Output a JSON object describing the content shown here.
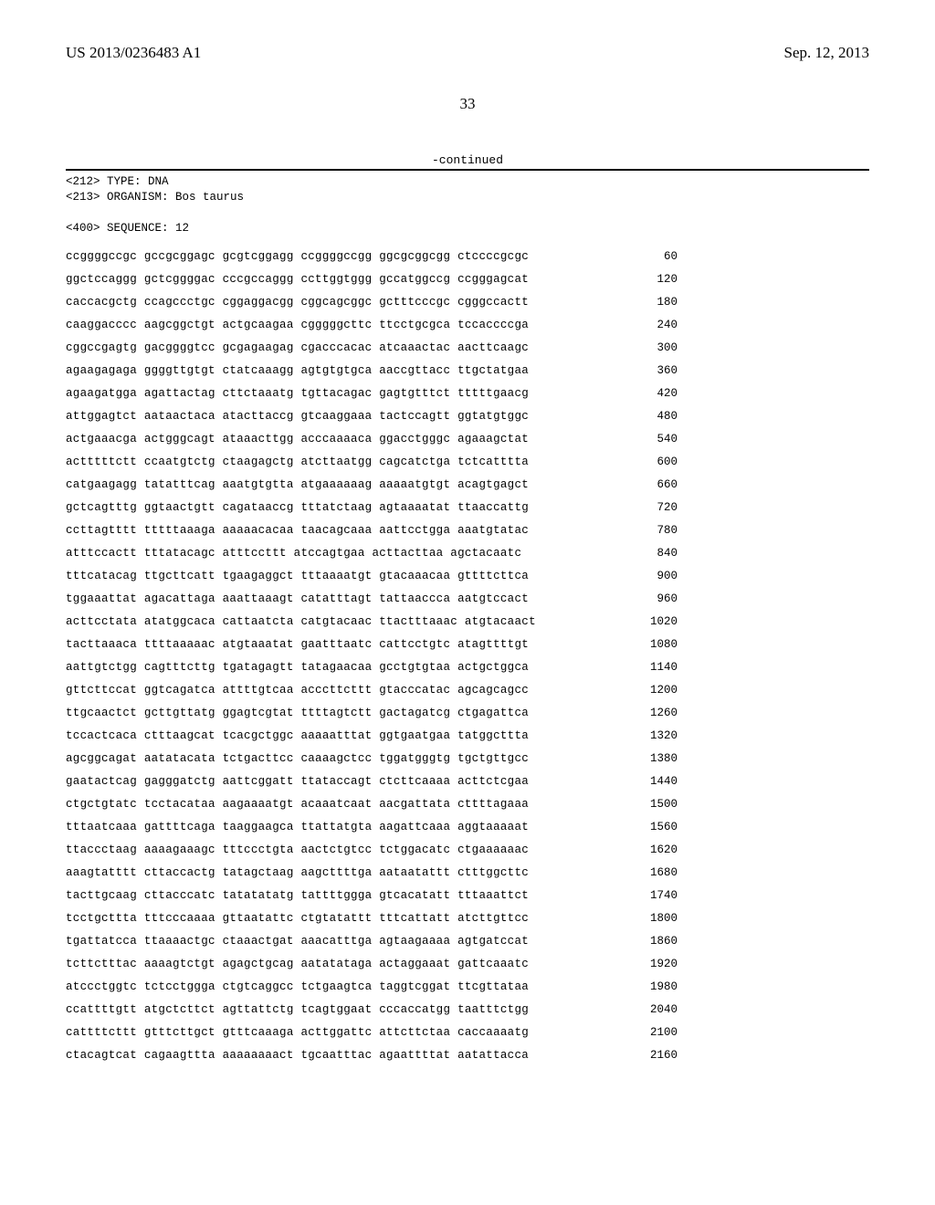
{
  "header": {
    "publication_number": "US 2013/0236483 A1",
    "publication_date": "Sep. 12, 2013"
  },
  "page_number": "33",
  "continued_label": "-continued",
  "meta_lines": [
    "<212> TYPE: DNA",
    "<213> ORGANISM: Bos taurus",
    "",
    "<400> SEQUENCE: 12"
  ],
  "sequence": [
    {
      "s": "ccggggccgc gccgcggagc gcgtcggagg ccggggccgg ggcgcggcgg ctccccgcgc",
      "p": "60"
    },
    {
      "s": "ggctccaggg gctcggggac cccgccaggg ccttggtggg gccatggccg ccgggagcat",
      "p": "120"
    },
    {
      "s": "caccacgctg ccagccctgc cggaggacgg cggcagcggc gctttcccgc cgggccactt",
      "p": "180"
    },
    {
      "s": "caaggacccc aagcggctgt actgcaagaa cgggggcttc ttcctgcgca tccaccccga",
      "p": "240"
    },
    {
      "s": "cggccgagtg gacggggtcc gcgagaagag cgacccacac atcaaactac aacttcaagc",
      "p": "300"
    },
    {
      "s": "agaagagaga ggggttgtgt ctatcaaagg agtgtgtgca aaccgttacc ttgctatgaa",
      "p": "360"
    },
    {
      "s": "agaagatgga agattactag cttctaaatg tgttacagac gagtgtttct tttttgaacg",
      "p": "420"
    },
    {
      "s": "attggagtct aataactaca atacttaccg gtcaaggaaa tactccagtt ggtatgtggc",
      "p": "480"
    },
    {
      "s": "actgaaacga actgggcagt ataaacttgg acccaaaaca ggacctgggc agaaagctat",
      "p": "540"
    },
    {
      "s": "actttttctt ccaatgtctg ctaagagctg atcttaatgg cagcatctga tctcatttta",
      "p": "600"
    },
    {
      "s": "catgaagagg tatatttcag aaatgtgtta atgaaaaaag aaaaatgtgt acagtgagct",
      "p": "660"
    },
    {
      "s": "gctcagtttg ggtaactgtt cagataaccg tttatctaag agtaaaatat ttaaccattg",
      "p": "720"
    },
    {
      "s": "ccttagtttt tttttaaaga aaaaacacaa taacagcaaa aattcctgga aaatgtatac",
      "p": "780"
    },
    {
      "s": "atttccactt tttatacagc atttccttt atccagtgaa acttacttaa agctacaatc",
      "p": "840"
    },
    {
      "s": "tttcatacag ttgcttcatt tgaagaggct tttaaaatgt gtacaaacaa gttttcttca",
      "p": "900"
    },
    {
      "s": "tggaaattat agacattaga aaattaaagt catatttagt tattaaccca aatgtccact",
      "p": "960"
    },
    {
      "s": "acttcctata atatggcaca cattaatcta catgtacaac ttactttaaac atgtacaact",
      "p": "1020"
    },
    {
      "s": "tacttaaaca ttttaaaaac atgtaaatat gaatttaatc cattcctgtc atagttttgt",
      "p": "1080"
    },
    {
      "s": "aattgtctgg cagtttcttg tgatagagtt tatagaacaa gcctgtgtaa actgctggca",
      "p": "1140"
    },
    {
      "s": "gttcttccat ggtcagatca attttgtcaa acccttcttt gtacccatac agcagcagcc",
      "p": "1200"
    },
    {
      "s": "ttgcaactct gcttgttatg ggagtcgtat ttttagtctt gactagatcg ctgagattca",
      "p": "1260"
    },
    {
      "s": "tccactcaca ctttaagcat tcacgctggc aaaaatttat ggtgaatgaa tatggcttta",
      "p": "1320"
    },
    {
      "s": "agcggcagat aatatacata tctgacttcc caaaagctcc tggatgggtg tgctgttgcc",
      "p": "1380"
    },
    {
      "s": "gaatactcag gagggatctg aattcggatt ttataccagt ctcttcaaaa acttctcgaa",
      "p": "1440"
    },
    {
      "s": "ctgctgtatc tcctacataa aagaaaatgt acaaatcaat aacgattata cttttagaaa",
      "p": "1500"
    },
    {
      "s": "tttaatcaaa gattttcaga taaggaagca ttattatgta aagattcaaa aggtaaaaat",
      "p": "1560"
    },
    {
      "s": "ttaccctaag aaaagaaagc tttccctgta aactctgtcc tctggacatc ctgaaaaaac",
      "p": "1620"
    },
    {
      "s": "aaagtatttt cttaccactg tatagctaag aagcttttga aataatattt ctttggcttc",
      "p": "1680"
    },
    {
      "s": "tacttgcaag cttacccatc tatatatatg tattttggga gtcacatatt tttaaattct",
      "p": "1740"
    },
    {
      "s": "tcctgcttta tttcccaaaa gttaatattc ctgtatattt tttcattatt atcttgttcc",
      "p": "1800"
    },
    {
      "s": "tgattatcca ttaaaactgc ctaaactgat aaacatttga agtaagaaaa agtgatccat",
      "p": "1860"
    },
    {
      "s": "tcttctttac aaaagtctgt agagctgcag aatatataga actaggaaat gattcaaatc",
      "p": "1920"
    },
    {
      "s": "atccctggtc tctcctggga ctgtcaggcc tctgaagtca taggtcggat ttcgttataa",
      "p": "1980"
    },
    {
      "s": "ccattttgtt atgctcttct agttattctg tcagtggaat cccaccatgg taatttctgg",
      "p": "2040"
    },
    {
      "s": "cattttcttt gtttcttgct gtttcaaaga acttggattc attcttctaa caccaaaatg",
      "p": "2100"
    },
    {
      "s": "ctacagtcat cagaagttta aaaaaaaact tgcaatttac agaattttat aatattacca",
      "p": "2160"
    }
  ]
}
